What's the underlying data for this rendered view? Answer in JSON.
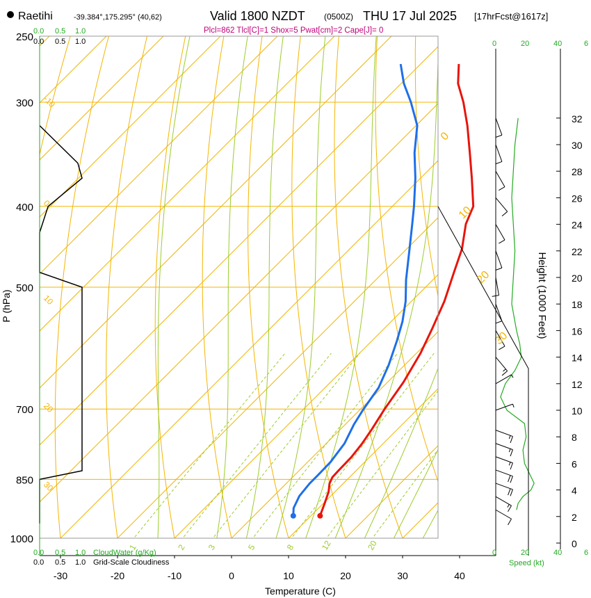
{
  "header": {
    "station": "Raetihi",
    "coords": "-39.384°,175.295° (40,62)",
    "valid_main": "Valid 1800 NZDT",
    "valid_z": "(0500Z)",
    "valid_date": "THU 17 Jul 2025",
    "forecast": "[17hrFcst@1617z]",
    "indices": "Plcl=862 Tlcl[C]=1 Shox=5 Pwat[cm]=2 Cape[J]= 0",
    "indices_color": "#c0007a"
  },
  "scales": {
    "cloudwater_ticks": [
      "0.0",
      "0.5",
      "1.0"
    ],
    "cloudiness_ticks": [
      "0.0",
      "0.5",
      "1.0"
    ],
    "cloudwater_label": "CloudWater (g/Kg)",
    "cloudiness_label": "Grid-Scale Cloudiness",
    "speed_ticks": [
      "0",
      "20",
      "40",
      "6"
    ],
    "speed_label": "Speed (kt)"
  },
  "colors": {
    "isotherm": "#f4b400",
    "dry_adiabat": "#f4b400",
    "moist_adiabat": "#9ccc2a",
    "mixing_ratio": "#9ccc2a",
    "temperature": "#e8140c",
    "dewpoint": "#1e6fe8",
    "cloudwater": "#22aa22",
    "cloudiness": "#000000",
    "speed": "#22aa22",
    "barb": "#000000"
  },
  "chart_data": {
    "type": "line",
    "title": "Raetihi skew-T sounding, Valid 1800 NZDT THU 17 Jul 2025",
    "xlabel": "Temperature (C)",
    "ylabel": "P (hPa)",
    "y2label": "Height (1000 Feet)",
    "xlim": [
      -34,
      40
    ],
    "ylim": [
      1000,
      250
    ],
    "x_ticks": [
      -30,
      -20,
      -10,
      0,
      10,
      20,
      30,
      40
    ],
    "p_ticks": [
      250,
      300,
      400,
      500,
      700,
      850,
      1000
    ],
    "height_ticks": [
      0,
      2,
      4,
      6,
      8,
      10,
      12,
      14,
      16,
      18,
      20,
      22,
      24,
      26,
      28,
      30,
      32
    ],
    "dry_adiabat_labels": [
      {
        "label": "-10",
        "p": 300
      },
      {
        "label": "0",
        "p": 400
      },
      {
        "label": "10",
        "p": 520
      },
      {
        "label": "20",
        "p": 700
      },
      {
        "label": "30",
        "p": 870
      }
    ],
    "isotherm_labels": [
      {
        "label": "0",
        "p": 330
      },
      {
        "label": "10",
        "p": 410
      },
      {
        "label": "20",
        "p": 490
      },
      {
        "label": "30",
        "p": 580
      }
    ],
    "mixing_ratio_labels": [
      "1",
      "2",
      "3",
      "5",
      "8",
      "12",
      "20"
    ],
    "series": [
      {
        "name": "Temperature",
        "p": [
          940,
          910,
          880,
          860,
          845,
          830,
          800,
          770,
          740,
          700,
          650,
          600,
          560,
          520,
          480,
          450,
          420,
          400,
          370,
          345,
          320,
          300,
          285,
          270
        ],
        "values": [
          11.6,
          10.3,
          8.9,
          7.6,
          7.0,
          6.9,
          6.8,
          6.3,
          5.5,
          4.2,
          2.8,
          0.7,
          -1.6,
          -4.2,
          -7.6,
          -10.3,
          -14.0,
          -15.8,
          -21.0,
          -25.8,
          -31.0,
          -35.8,
          -40.0,
          -43.3
        ]
      },
      {
        "name": "Dewpoint",
        "p": [
          940,
          920,
          890,
          860,
          840,
          810,
          770,
          730,
          700,
          660,
          620,
          580,
          550,
          520,
          490,
          450,
          420,
          400,
          370,
          345,
          320,
          300,
          285,
          270
        ],
        "values": [
          6.9,
          5.6,
          4.5,
          4.1,
          4.1,
          4.0,
          3.2,
          1.5,
          0.5,
          -0.6,
          -2.8,
          -5.6,
          -8.0,
          -11.0,
          -14.7,
          -19.5,
          -23.4,
          -26.2,
          -30.9,
          -35.5,
          -39.8,
          -45.0,
          -49.5,
          -53.5
        ]
      }
    ],
    "surface_points": [
      {
        "name": "Temperature",
        "p": 940,
        "value": 11.6
      },
      {
        "name": "Dewpoint",
        "p": 940,
        "value": 6.9
      }
    ],
    "cloudiness_profile": {
      "p": [
        960,
        850,
        830,
        500,
        480,
        430,
        400,
        370,
        355,
        320
      ],
      "values": [
        0.0,
        0.0,
        1.0,
        1.0,
        0.0,
        0.0,
        0.2,
        1.0,
        0.9,
        0.0
      ]
    },
    "wind_speed_profile": {
      "height_kft": [
        2.5,
        3,
        3.5,
        4,
        4.5,
        5,
        5.5,
        6,
        7,
        8,
        9,
        10,
        11,
        12,
        13,
        14,
        15,
        16,
        18,
        20,
        22,
        24,
        26,
        28,
        30,
        32
      ],
      "values": [
        13,
        14,
        17,
        22,
        24,
        22,
        20,
        18,
        17,
        19,
        18,
        7,
        3,
        6,
        12,
        16,
        15,
        13,
        10,
        11,
        12,
        11,
        10,
        11,
        12,
        14
      ]
    },
    "wind_barbs": [
      {
        "height_kft": 2.5,
        "speed_kt": 13,
        "dir_deg": 300
      },
      {
        "height_kft": 3.5,
        "speed_kt": 17,
        "dir_deg": 300
      },
      {
        "height_kft": 4.5,
        "speed_kt": 24,
        "dir_deg": 290
      },
      {
        "height_kft": 5.5,
        "speed_kt": 20,
        "dir_deg": 290
      },
      {
        "height_kft": 6.5,
        "speed_kt": 17,
        "dir_deg": 290
      },
      {
        "height_kft": 7.5,
        "speed_kt": 18,
        "dir_deg": 290
      },
      {
        "height_kft": 8.5,
        "speed_kt": 19,
        "dir_deg": 290
      },
      {
        "height_kft": 10,
        "speed_kt": 7,
        "dir_deg": 250
      },
      {
        "height_kft": 12,
        "speed_kt": 6,
        "dir_deg": 240
      },
      {
        "height_kft": 14,
        "speed_kt": 16,
        "dir_deg": 320
      },
      {
        "height_kft": 16,
        "speed_kt": 13,
        "dir_deg": 330
      },
      {
        "height_kft": 18,
        "speed_kt": 10,
        "dir_deg": 340
      },
      {
        "height_kft": 20,
        "speed_kt": 11,
        "dir_deg": 350
      },
      {
        "height_kft": 22,
        "speed_kt": 12,
        "dir_deg": 340
      },
      {
        "height_kft": 24,
        "speed_kt": 11,
        "dir_deg": 330
      },
      {
        "height_kft": 26,
        "speed_kt": 10,
        "dir_deg": 320
      },
      {
        "height_kft": 28,
        "speed_kt": 11,
        "dir_deg": 330
      },
      {
        "height_kft": 30,
        "speed_kt": 12,
        "dir_deg": 340
      },
      {
        "height_kft": 32,
        "speed_kt": 14,
        "dir_deg": 340
      }
    ]
  }
}
